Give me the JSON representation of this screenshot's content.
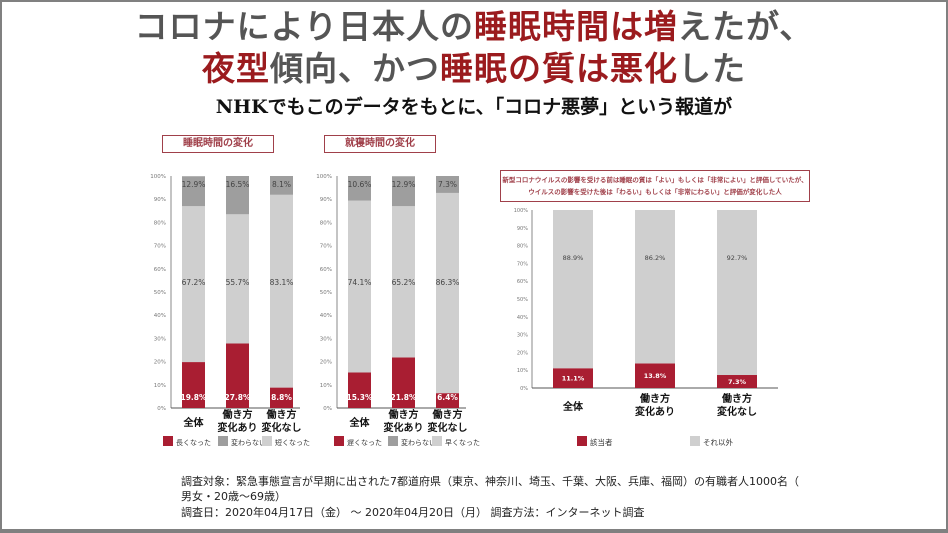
{
  "header": {
    "title_line1": [
      {
        "text": "コロナにより日本人の",
        "highlight": false
      },
      {
        "text": "睡眠時間は増",
        "highlight": true
      },
      {
        "text": "えたが、",
        "highlight": false
      }
    ],
    "title_line2": [
      {
        "text": "夜型",
        "highlight": true
      },
      {
        "text": "傾向、かつ",
        "highlight": false
      },
      {
        "text": "睡眠の質は悪化",
        "highlight": true
      },
      {
        "text": "した",
        "highlight": false
      }
    ],
    "subtitle": "NHKでもこのデータをもとに、「コロナ悪夢」という報道が"
  },
  "colors": {
    "title_gray": "#555555",
    "title_red": "#9b1b1e",
    "bar_red": "#a91e32",
    "bar_dark_gray": "#9e9e9e",
    "bar_light_gray": "#cfcfcf",
    "panel_border": "#a0404a"
  },
  "chart_data": [
    {
      "type": "bar",
      "stacked": true,
      "title": "睡眠時間の変化",
      "categories": [
        "全体",
        "働き方\n変化あり",
        "働き方\n変化なし"
      ],
      "series": [
        {
          "name": "長くなった",
          "color": "#a91e32",
          "values": [
            19.8,
            27.8,
            8.8
          ]
        },
        {
          "name": "短くなった",
          "color": "#cfcfcf",
          "values": [
            67.2,
            55.7,
            83.1
          ]
        },
        {
          "name": "変わらない",
          "color": "#9e9e9e",
          "values": [
            12.9,
            16.5,
            8.1
          ]
        }
      ],
      "legend": [
        {
          "label": "長くなった",
          "color": "#a91e32"
        },
        {
          "label": "変わらない",
          "color": "#9e9e9e"
        },
        {
          "label": "短くなった",
          "color": "#cfcfcf"
        }
      ],
      "yticks": [
        "0%",
        "10%",
        "20%",
        "30%",
        "40%",
        "50%",
        "60%",
        "70%",
        "80%",
        "90%",
        "100%"
      ],
      "ylim": [
        0,
        100
      ],
      "legend_position": "bottom",
      "grid": false
    },
    {
      "type": "bar",
      "stacked": true,
      "title": "就寝時間の変化",
      "categories": [
        "全体",
        "働き方\n変化あり",
        "働き方\n変化なし"
      ],
      "series": [
        {
          "name": "遅くなった",
          "color": "#a91e32",
          "values": [
            15.3,
            21.8,
            6.4
          ]
        },
        {
          "name": "早くなった",
          "color": "#cfcfcf",
          "values": [
            74.1,
            65.2,
            86.3
          ]
        },
        {
          "name": "変わらない",
          "color": "#9e9e9e",
          "values": [
            10.6,
            12.9,
            7.3
          ]
        }
      ],
      "legend": [
        {
          "label": "遅くなった",
          "color": "#a91e32"
        },
        {
          "label": "変わらない",
          "color": "#9e9e9e"
        },
        {
          "label": "早くなった",
          "color": "#cfcfcf"
        }
      ],
      "yticks": [
        "0%",
        "10%",
        "20%",
        "30%",
        "40%",
        "50%",
        "60%",
        "70%",
        "80%",
        "90%",
        "100%"
      ],
      "ylim": [
        0,
        100
      ],
      "legend_position": "bottom",
      "grid": false
    },
    {
      "type": "bar",
      "stacked": true,
      "title": "新型コロナウイルスの影響を受ける前は睡眠の質は「よい」もしくは「非常によい」と評価していたが、\nウイルスの影響を受けた後は「わるい」もしくは「非常にわるい」と評価が変化した人",
      "categories": [
        "全体",
        "働き方\n変化あり",
        "働き方\n変化なし"
      ],
      "series": [
        {
          "name": "該当者",
          "color": "#a91e32",
          "values": [
            11.1,
            13.8,
            7.3
          ]
        },
        {
          "name": "それ以外",
          "color": "#cfcfcf",
          "values": [
            88.9,
            86.2,
            92.7
          ]
        }
      ],
      "legend": [
        {
          "label": "該当者",
          "color": "#a91e32"
        },
        {
          "label": "それ以外",
          "color": "#cfcfcf"
        }
      ],
      "yticks": [
        "0%",
        "10%",
        "20%",
        "30%",
        "40%",
        "50%",
        "60%",
        "70%",
        "80%",
        "90%",
        "100%"
      ],
      "ylim": [
        0,
        100
      ],
      "legend_position": "bottom",
      "grid": false
    }
  ],
  "footer": {
    "line1": "調査対象：緊急事態宣言が早期に出された7都道府県（東京、神奈川、埼玉、千葉、大阪、兵庫、福岡）の有職者人1000名（",
    "line2": "男女・20歳～69歳）",
    "line3": "調査日：2020年04月17日（金） ～ 2020年04月20日（月） 調査方法：インターネット調査"
  }
}
